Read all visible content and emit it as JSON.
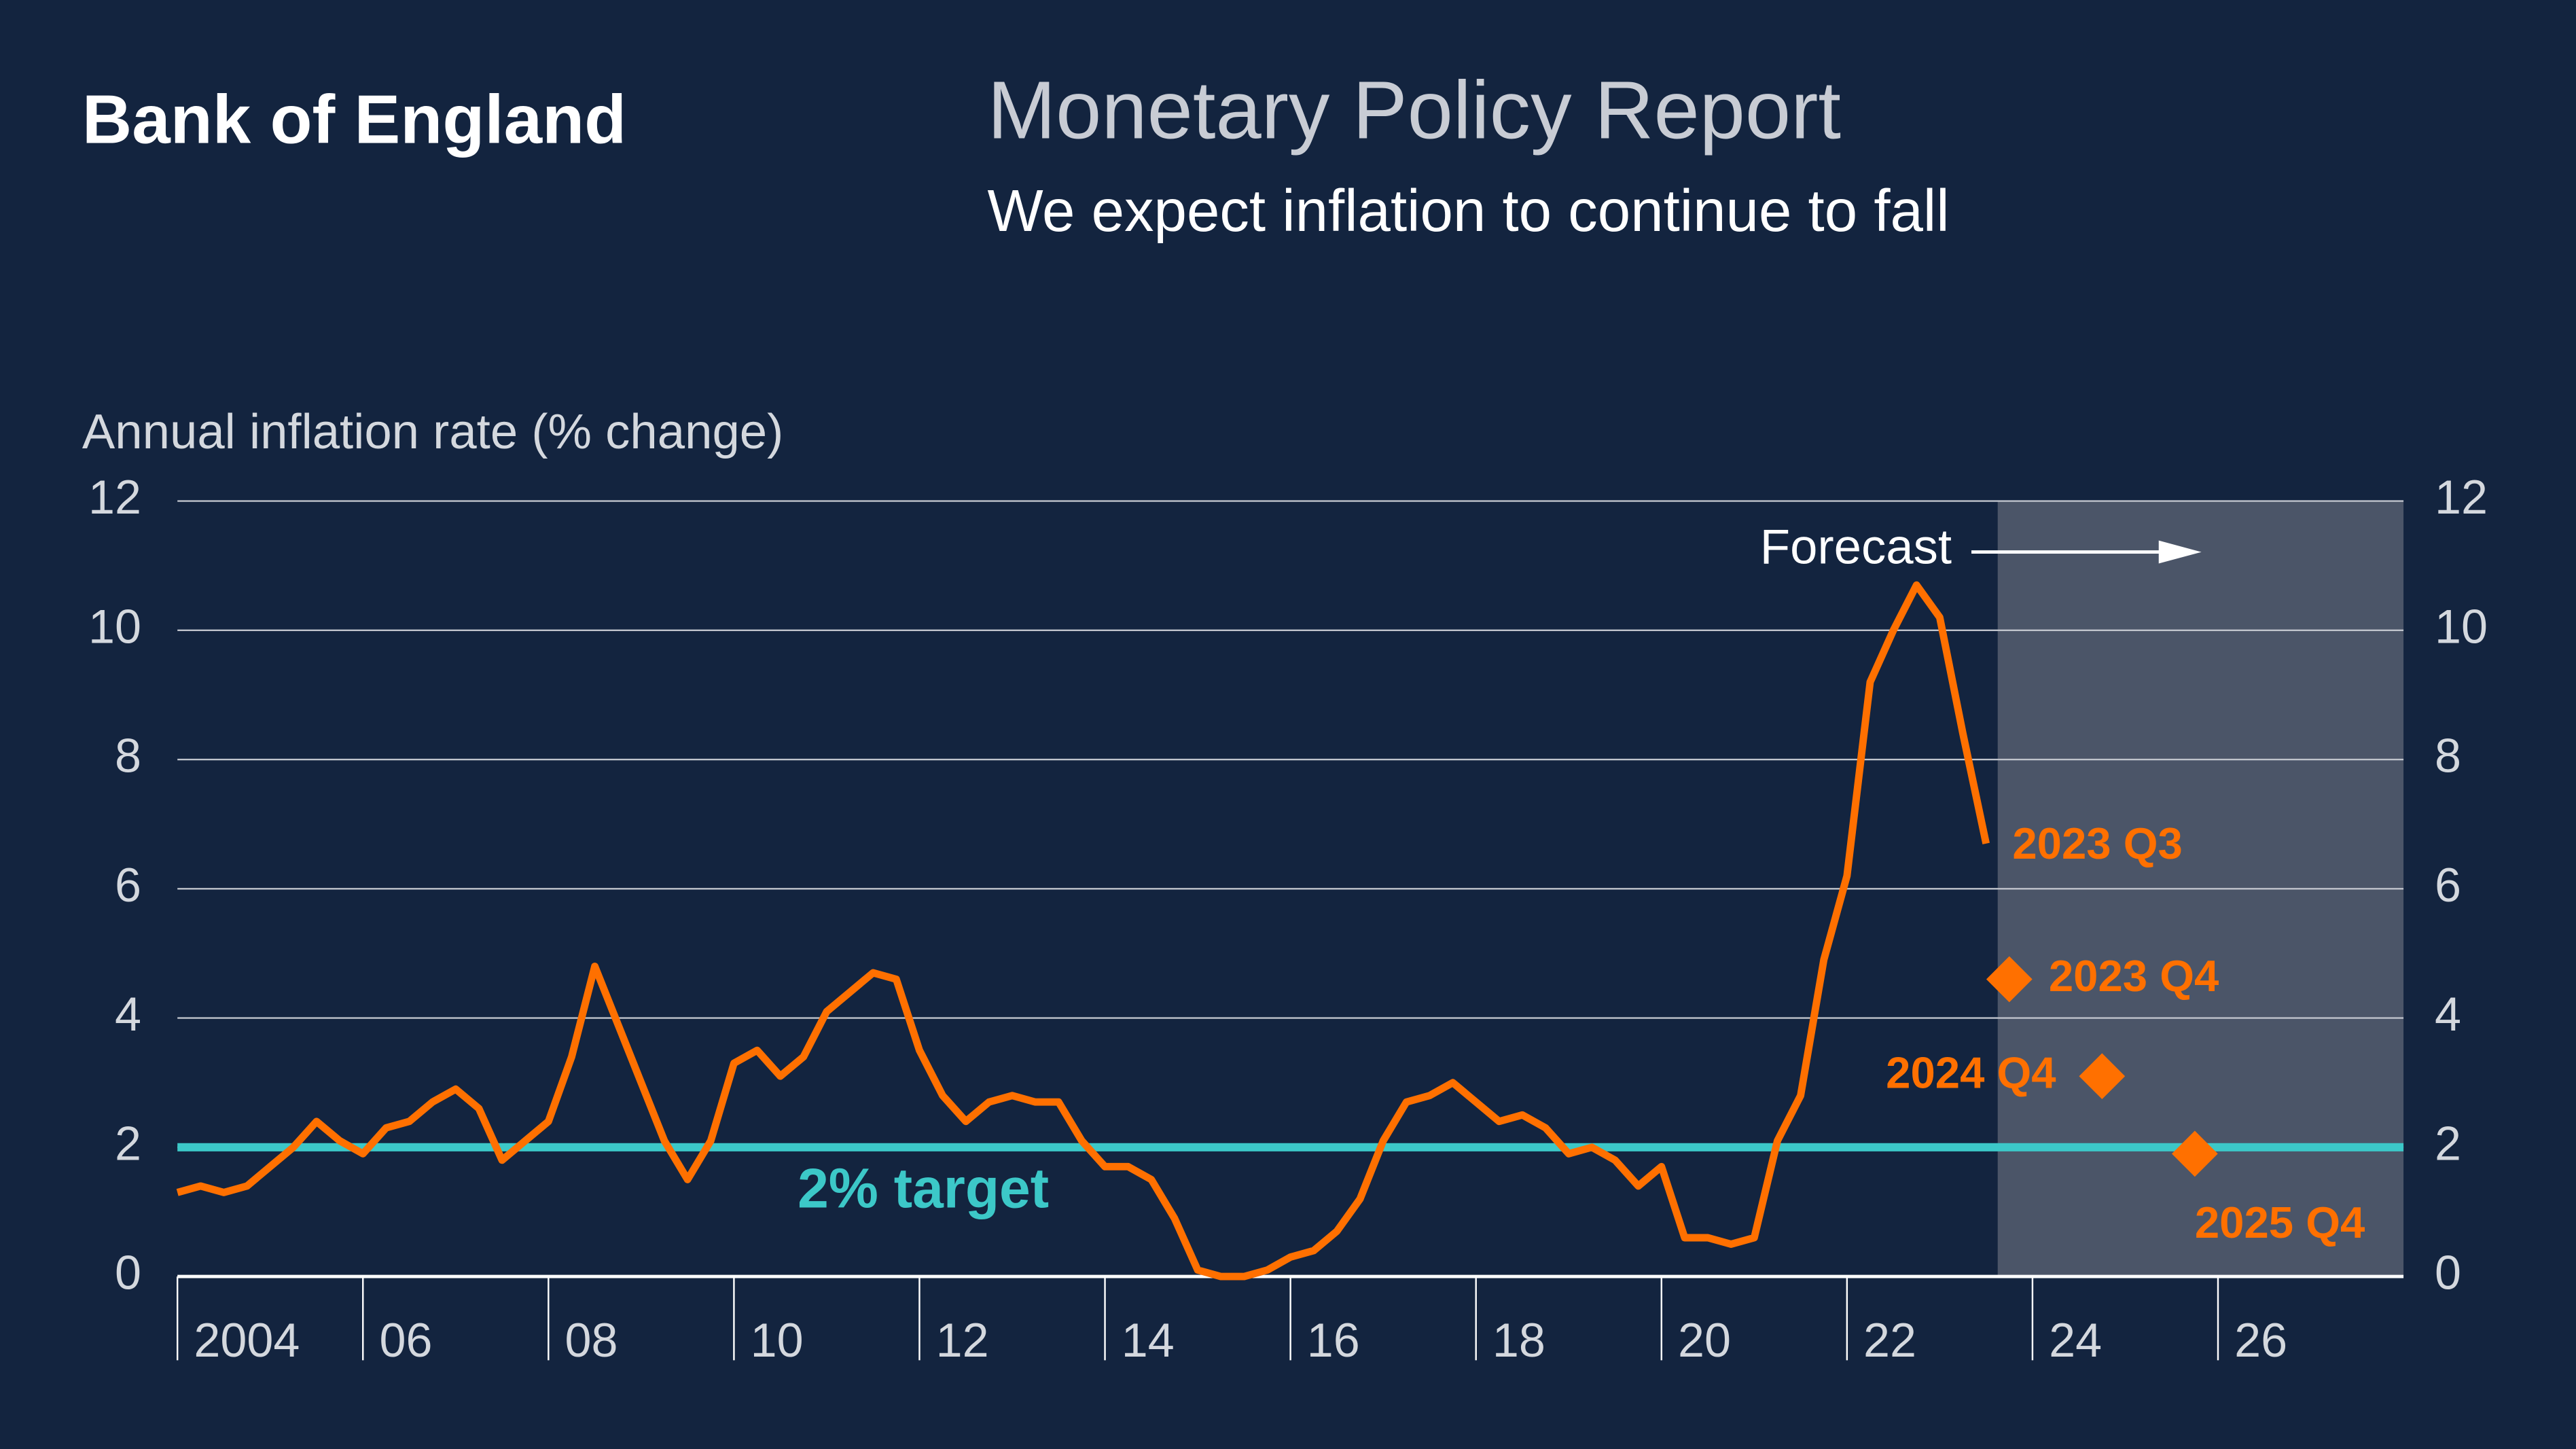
{
  "brand": "Bank of England",
  "chart_data": {
    "type": "line",
    "title": "Monetary Policy Report",
    "subtitle": "We expect inflation to continue to fall",
    "y_label": "Annual inflation rate (% change)",
    "xlim": [
      2004,
      2028
    ],
    "xticks": [
      2004,
      {
        "value": 2006,
        "label": "06"
      },
      {
        "value": 2008,
        "label": "08"
      },
      {
        "value": 2010,
        "label": "10"
      },
      {
        "value": 2012,
        "label": "12"
      },
      {
        "value": 2014,
        "label": "14"
      },
      {
        "value": 2016,
        "label": "16"
      },
      {
        "value": 2018,
        "label": "18"
      },
      {
        "value": 2020,
        "label": "20"
      },
      {
        "value": 2022,
        "label": "22"
      },
      {
        "value": 2024,
        "label": "24"
      },
      {
        "value": 2026,
        "label": "26"
      }
    ],
    "ylim": [
      0,
      12
    ],
    "yticks": [
      0,
      2,
      4,
      6,
      8,
      10,
      12
    ],
    "y2lim": [
      0,
      12
    ],
    "y2ticks": [
      0,
      2,
      4,
      6,
      8,
      10,
      12
    ],
    "grid": true,
    "series": [
      {
        "color": "#ff7000",
        "x": [
          2004,
          2004.25,
          2004.5,
          2004.75,
          2005,
          2005.25,
          2005.5,
          2005.75,
          2006,
          2006.25,
          2006.5,
          2006.75,
          2007,
          2007.25,
          2007.5,
          2007.75,
          2008,
          2008.25,
          2008.5,
          2008.75,
          2009,
          2009.25,
          2009.5,
          2009.75,
          2010,
          2010.25,
          2010.5,
          2010.75,
          2011,
          2011.25,
          2011.5,
          2011.75,
          2012,
          2012.25,
          2012.5,
          2012.75,
          2013,
          2013.25,
          2013.5,
          2013.75,
          2014,
          2014.25,
          2014.5,
          2014.75,
          2015,
          2015.25,
          2015.5,
          2015.75,
          2016,
          2016.25,
          2016.5,
          2016.75,
          2017,
          2017.25,
          2017.5,
          2017.75,
          2018,
          2018.25,
          2018.5,
          2018.75,
          2019,
          2019.25,
          2019.5,
          2019.75,
          2020,
          2020.25,
          2020.5,
          2020.75,
          2021,
          2021.25,
          2021.5,
          2021.75,
          2022,
          2022.25,
          2022.5,
          2022.75,
          2023,
          2023.25,
          2023.5
        ],
        "values": [
          1.3,
          1.4,
          1.3,
          1.4,
          1.7,
          2.0,
          2.4,
          2.1,
          1.9,
          2.3,
          2.4,
          2.7,
          2.9,
          2.6,
          1.8,
          2.1,
          2.4,
          3.4,
          4.8,
          3.9,
          3.0,
          2.1,
          1.5,
          2.1,
          3.3,
          3.5,
          3.1,
          3.4,
          4.1,
          4.4,
          4.7,
          4.6,
          3.5,
          2.8,
          2.4,
          2.7,
          2.8,
          2.7,
          2.7,
          2.1,
          1.7,
          1.7,
          1.5,
          0.9,
          0.1,
          0.0,
          0.0,
          0.1,
          0.3,
          0.4,
          0.7,
          1.2,
          2.1,
          2.7,
          2.8,
          3.0,
          2.7,
          2.4,
          2.5,
          2.3,
          1.9,
          2.0,
          1.8,
          1.4,
          1.7,
          0.6,
          0.6,
          0.5,
          0.6,
          2.1,
          2.8,
          4.9,
          6.2,
          9.2,
          10.0,
          10.7,
          10.2,
          8.4,
          6.7
        ],
        "end_label": "2023 Q3"
      },
      {
        "color": "#ff7000",
        "x": [
          2023.75,
          2024.75,
          2025.75
        ],
        "values": [
          4.6,
          3.1,
          1.9
        ],
        "point_labels": [
          "2023 Q4",
          "2024 Q4",
          "2025 Q4"
        ]
      }
    ],
    "target": {
      "value": 2,
      "label": "2% target",
      "color": "#3cc8c8"
    },
    "forecast": {
      "start": 2023.625,
      "label": "Forecast",
      "color": "#4b5568"
    }
  }
}
